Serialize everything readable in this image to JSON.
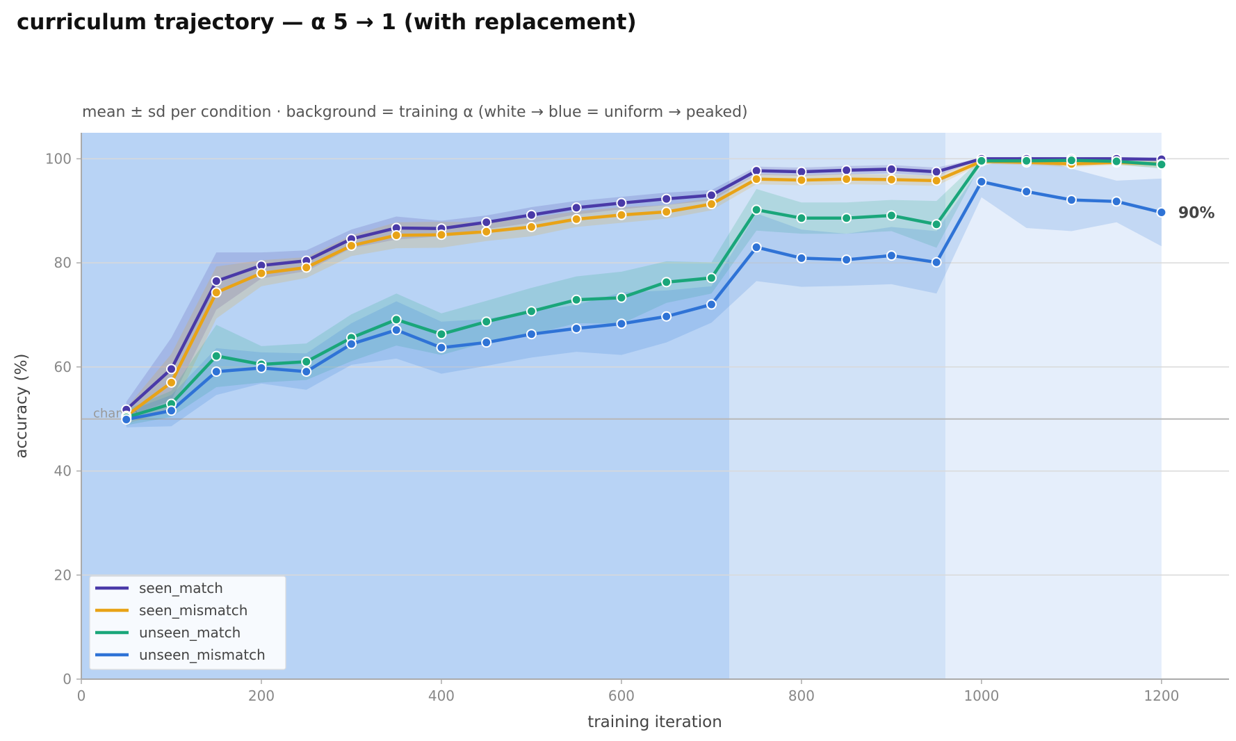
{
  "chart_data": {
    "type": "line",
    "title": "curriculum trajectory — α 5 → 1 (with replacement)",
    "subtitle": "mean ± sd per condition · background = training α (white → blue = uniform → peaked)",
    "xlabel": "training iteration",
    "ylabel": "accuracy (%)",
    "xlim": [
      0,
      1275
    ],
    "ylim": [
      0,
      105
    ],
    "x_ticks": [
      0,
      200,
      400,
      600,
      800,
      1000,
      1200
    ],
    "y_ticks": [
      0,
      20,
      40,
      60,
      80,
      100
    ],
    "grid": "horizontal",
    "legend_position": "bottom-left",
    "chance_level": 50,
    "chance_label": "chance",
    "end_annotation": {
      "series": "unseen_mismatch",
      "x": 1200,
      "y": 89.7,
      "label": "90%"
    },
    "background_bands": [
      {
        "x_start": 0,
        "x_end": 720,
        "color": "#b8d3f5"
      },
      {
        "x_start": 720,
        "x_end": 960,
        "color": "#d1e2f7"
      },
      {
        "x_start": 960,
        "x_end": 1200,
        "color": "#e5eefb"
      }
    ],
    "x": [
      50,
      100,
      150,
      200,
      250,
      300,
      350,
      400,
      450,
      500,
      550,
      600,
      650,
      700,
      750,
      800,
      850,
      900,
      950,
      1000,
      1050,
      1100,
      1150,
      1200
    ],
    "series": [
      {
        "name": "seen_match",
        "color": "#4a3aa8",
        "values": [
          51.8,
          59.6,
          76.5,
          79.5,
          80.4,
          84.6,
          86.7,
          86.6,
          87.8,
          89.2,
          90.6,
          91.5,
          92.3,
          93.0,
          97.7,
          97.5,
          97.8,
          98.0,
          97.5,
          100,
          100,
          100,
          100,
          99.9
        ],
        "sd": [
          1.5,
          6,
          5.5,
          2.5,
          2,
          1.8,
          2.2,
          1.5,
          1.3,
          1.5,
          1.3,
          1.2,
          1.2,
          1,
          0.8,
          0.8,
          0.8,
          0.8,
          0.8,
          0.2,
          0.2,
          0.2,
          0.2,
          0.3
        ]
      },
      {
        "name": "seen_mismatch",
        "color": "#e8a317",
        "values": [
          50.6,
          57.0,
          74.3,
          78.0,
          79.1,
          83.3,
          85.3,
          85.4,
          86.0,
          86.9,
          88.4,
          89.2,
          89.8,
          91.3,
          96.1,
          95.9,
          96.1,
          96.0,
          95.8,
          99.5,
          99.3,
          99.0,
          99.3,
          99.0
        ],
        "sd": [
          1.5,
          5.5,
          5,
          2.5,
          2,
          2,
          2.5,
          2.5,
          1.8,
          1.8,
          1.5,
          1.5,
          1.3,
          1.2,
          1,
          1,
          1,
          1,
          1,
          0.5,
          0.5,
          0.6,
          0.5,
          0.7
        ]
      },
      {
        "name": "unseen_match",
        "color": "#1aa67a",
        "values": [
          50.3,
          52.9,
          62.1,
          60.5,
          61.0,
          65.6,
          69.1,
          66.3,
          68.7,
          70.7,
          72.9,
          73.3,
          76.3,
          77.1,
          90.2,
          88.6,
          88.6,
          89.1,
          87.4,
          99.6,
          99.6,
          99.7,
          99.5,
          98.9
        ],
        "sd": [
          1.5,
          2.5,
          6,
          3.5,
          3.5,
          4.5,
          5,
          4,
          4,
          4.5,
          4.5,
          5,
          4,
          3,
          4,
          3,
          3,
          3,
          4.5,
          0.5,
          0.5,
          0.5,
          0.6,
          0.8
        ]
      },
      {
        "name": "unseen_mismatch",
        "color": "#2f73d6",
        "values": [
          49.9,
          51.6,
          59.1,
          59.8,
          59.1,
          64.4,
          67.1,
          63.7,
          64.7,
          66.3,
          67.4,
          68.3,
          69.7,
          72.0,
          83.0,
          80.9,
          80.6,
          81.4,
          80.1,
          95.6,
          93.7,
          92.1,
          91.8,
          89.7
        ],
        "sd": [
          1.5,
          3,
          4.5,
          3,
          3.5,
          4,
          5.5,
          5,
          4.5,
          4.5,
          4.5,
          6,
          5,
          3.5,
          6.5,
          5.5,
          5,
          5.5,
          6,
          3,
          7,
          6,
          4,
          6.5
        ]
      }
    ]
  }
}
